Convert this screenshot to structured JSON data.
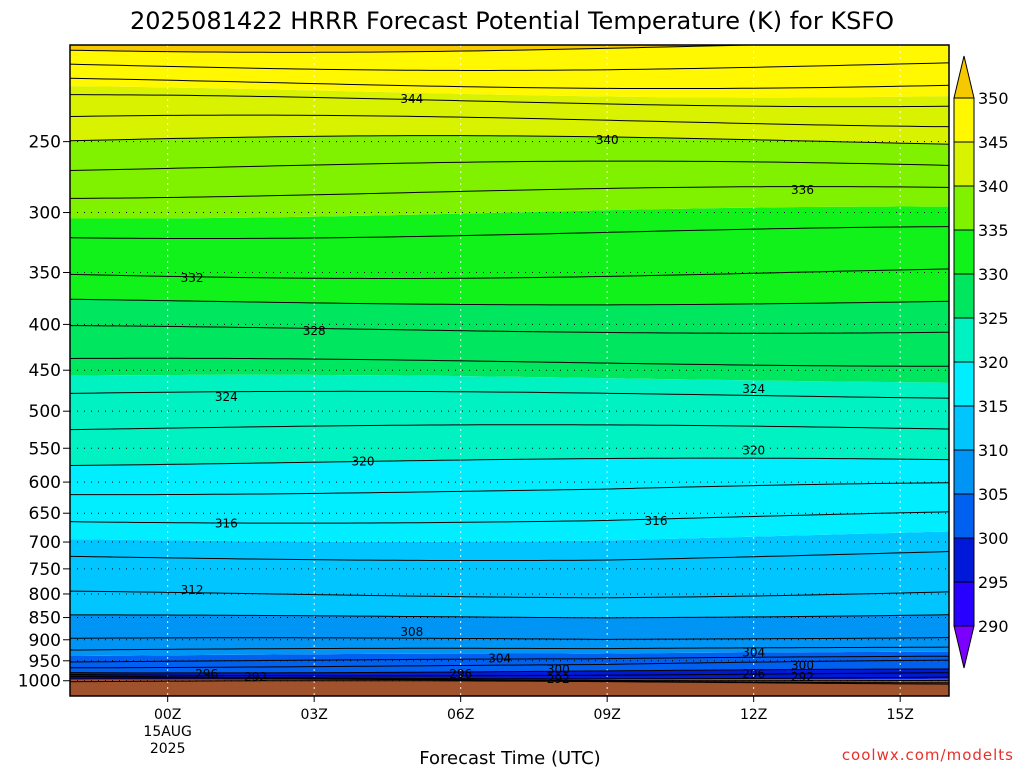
{
  "colors": {
    "ground": "#a0522d",
    "contour": "#000000",
    "credit": "#e8302a"
  },
  "chart_data": {
    "type": "heatmap",
    "title": "2025081422 HRRR Forecast Potential Temperature (K) for KSFO",
    "xlabel": "Forecast Time (UTC)",
    "ylabel": "",
    "x_ticks": [
      {
        "label": "00Z",
        "hour": 0,
        "sub1": "15AUG",
        "sub2": "2025"
      },
      {
        "label": "03Z",
        "hour": 3
      },
      {
        "label": "06Z",
        "hour": 6
      },
      {
        "label": "09Z",
        "hour": 9
      },
      {
        "label": "12Z",
        "hour": 12
      },
      {
        "label": "15Z",
        "hour": 15
      }
    ],
    "x_range_hours": [
      -2,
      16
    ],
    "y_axis": "pressure (hPa), log scale, inverted",
    "y_range_hpa": [
      1040,
      195
    ],
    "y_ticks": [
      250,
      300,
      350,
      400,
      450,
      500,
      550,
      600,
      650,
      700,
      750,
      800,
      850,
      900,
      950,
      1000
    ],
    "grid": true,
    "colorbar": {
      "levels": [
        290,
        295,
        300,
        305,
        310,
        315,
        320,
        325,
        330,
        335,
        340,
        345,
        350
      ],
      "colors": [
        "#7b00ff",
        "#2800ff",
        "#0019d8",
        "#0060f0",
        "#0095f5",
        "#00c5ff",
        "#00eeff",
        "#00f2c2",
        "#00e65e",
        "#10f21a",
        "#80f200",
        "#d8f200",
        "#fff800",
        "#f5c800"
      ]
    },
    "theta_profile_k": [
      {
        "p": 1000,
        "theta": 292
      },
      {
        "p": 990,
        "theta": 296
      },
      {
        "p": 975,
        "theta": 300
      },
      {
        "p": 950,
        "theta": 304
      },
      {
        "p": 900,
        "theta": 308
      },
      {
        "p": 800,
        "theta": 312
      },
      {
        "p": 660,
        "theta": 316
      },
      {
        "p": 570,
        "theta": 320
      },
      {
        "p": 480,
        "theta": 324
      },
      {
        "p": 405,
        "theta": 328
      },
      {
        "p": 350,
        "theta": 332
      },
      {
        "p": 285,
        "theta": 336
      },
      {
        "p": 250,
        "theta": 340
      },
      {
        "p": 225,
        "theta": 344
      },
      {
        "p": 205,
        "theta": 348
      }
    ],
    "contour_labels": [
      {
        "text": "344",
        "hour": 5.0,
        "p": 224
      },
      {
        "text": "340",
        "hour": 9.0,
        "p": 249
      },
      {
        "text": "336",
        "hour": 13.0,
        "p": 283
      },
      {
        "text": "332",
        "hour": 0.5,
        "p": 355
      },
      {
        "text": "328",
        "hour": 3.0,
        "p": 407
      },
      {
        "text": "324",
        "hour": 1.2,
        "p": 482
      },
      {
        "text": "324",
        "hour": 12.0,
        "p": 472
      },
      {
        "text": "320",
        "hour": 4.0,
        "p": 569
      },
      {
        "text": "320",
        "hour": 12.0,
        "p": 553
      },
      {
        "text": "316",
        "hour": 1.2,
        "p": 667
      },
      {
        "text": "316",
        "hour": 10.0,
        "p": 663
      },
      {
        "text": "312",
        "hour": 0.5,
        "p": 792
      },
      {
        "text": "308",
        "hour": 5.0,
        "p": 882
      },
      {
        "text": "304",
        "hour": 6.8,
        "p": 944
      },
      {
        "text": "304",
        "hour": 12.0,
        "p": 930
      },
      {
        "text": "300",
        "hour": 8.0,
        "p": 972
      },
      {
        "text": "300",
        "hour": 13.0,
        "p": 962
      },
      {
        "text": "296",
        "hour": 0.8,
        "p": 983
      },
      {
        "text": "296",
        "hour": 6.0,
        "p": 983
      },
      {
        "text": "296",
        "hour": 12.0,
        "p": 983
      },
      {
        "text": "292",
        "hour": 1.8,
        "p": 990
      },
      {
        "text": "292",
        "hour": 8.0,
        "p": 995
      },
      {
        "text": "292",
        "hour": 13.0,
        "p": 990
      }
    ]
  },
  "credit": "coolwx.com/modelts"
}
